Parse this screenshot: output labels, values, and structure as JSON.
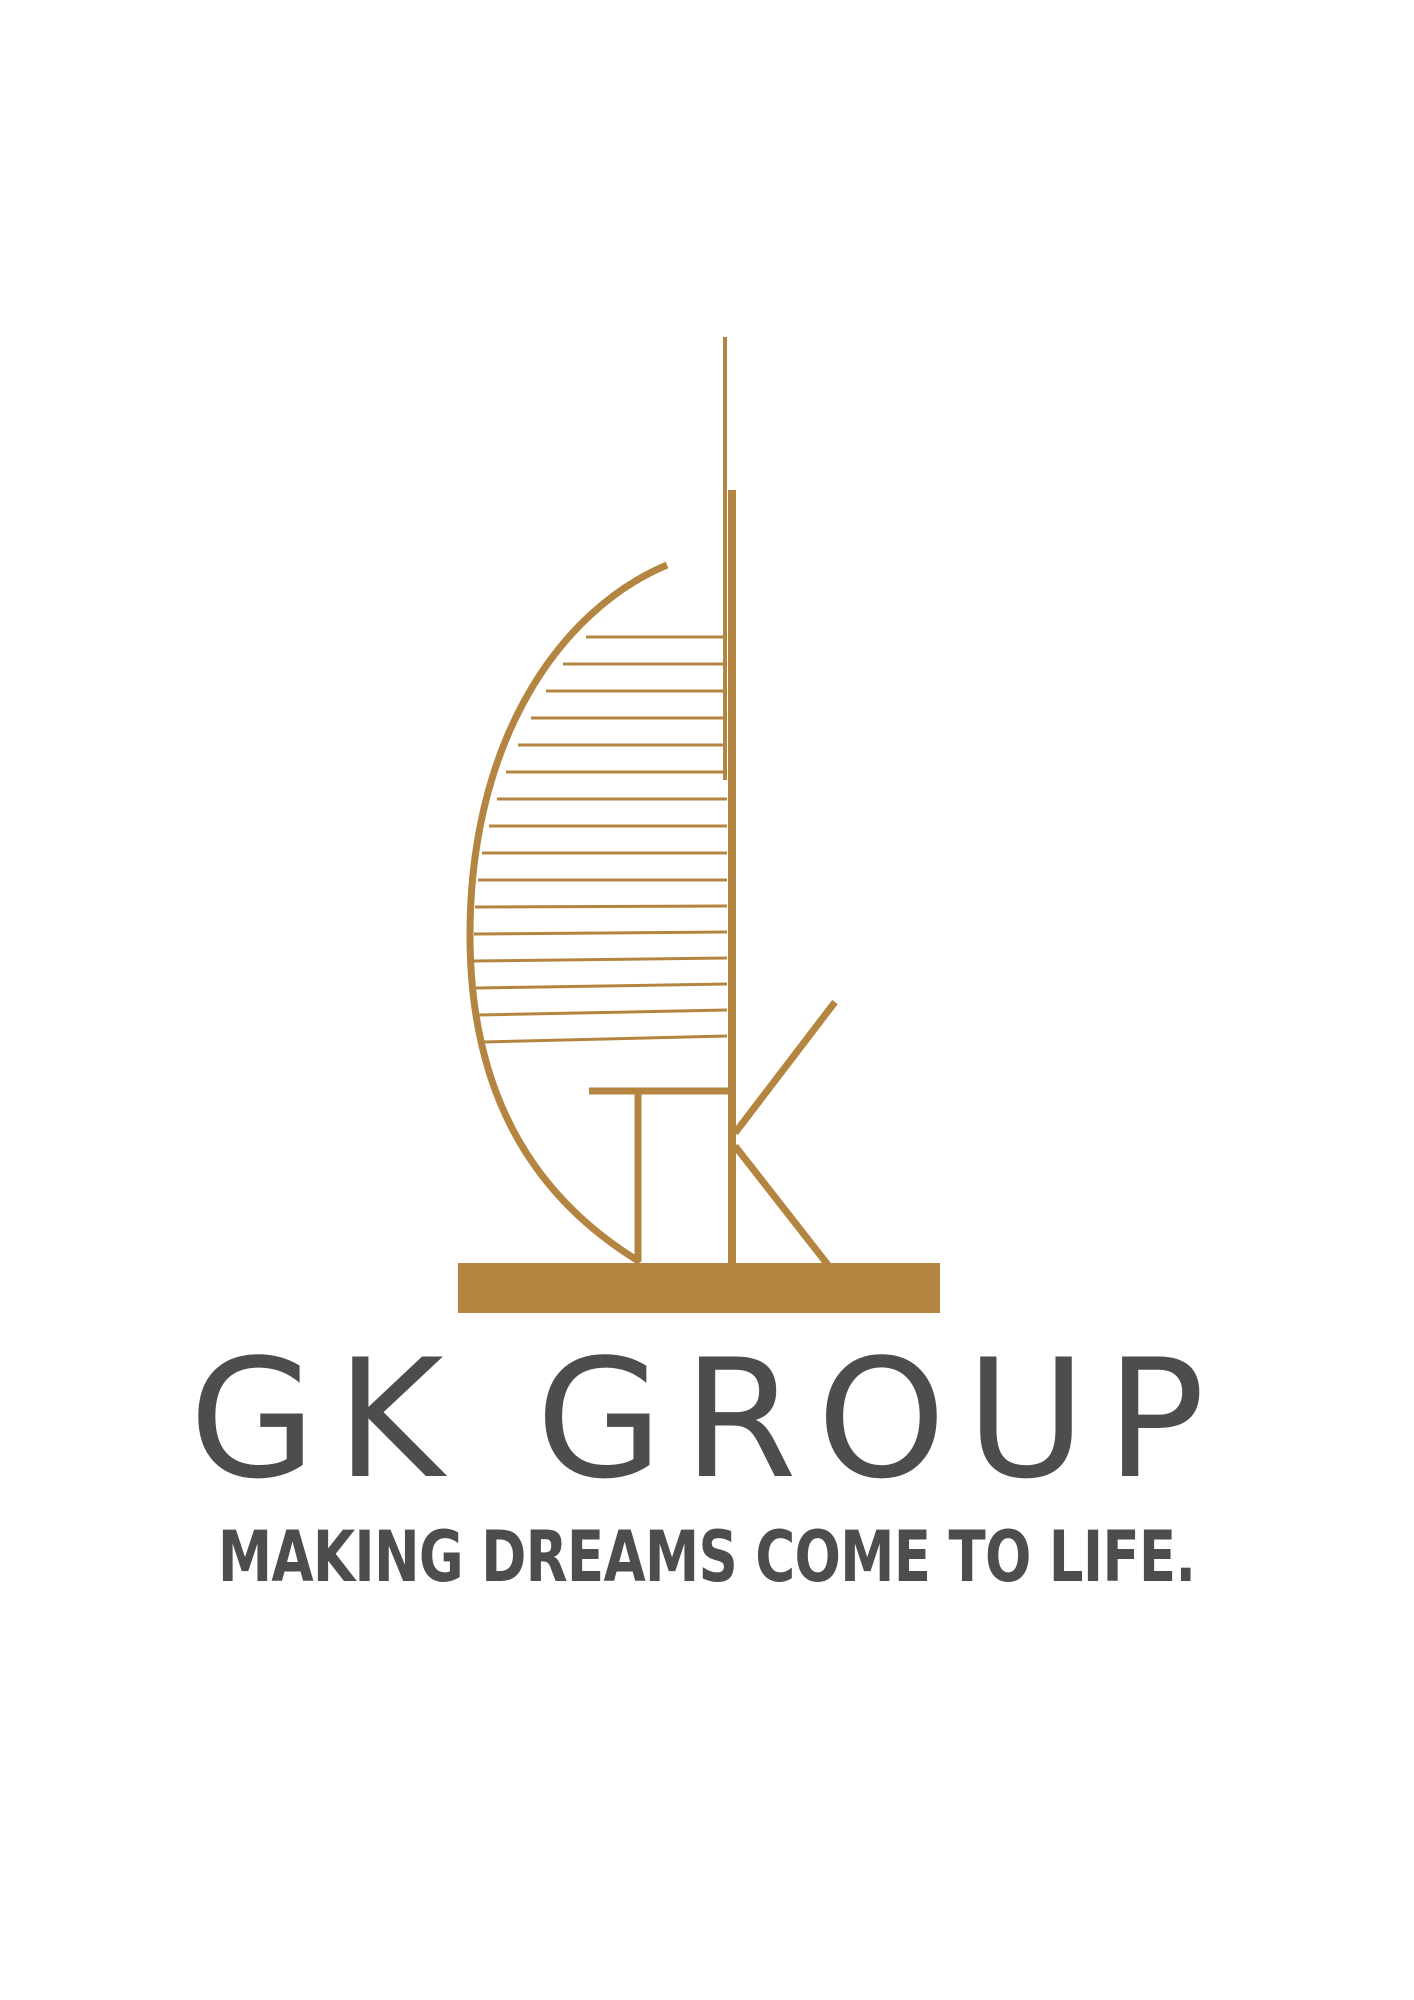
{
  "brand": {
    "name": "GK GROUP",
    "tagline": "MAKING DREAMS COME TO LIFE.",
    "logo_icon": "spinnaker-tower-icon"
  },
  "colors": {
    "gold": "#b38540",
    "text": "#4f4d4b",
    "background": "#ffffff"
  }
}
